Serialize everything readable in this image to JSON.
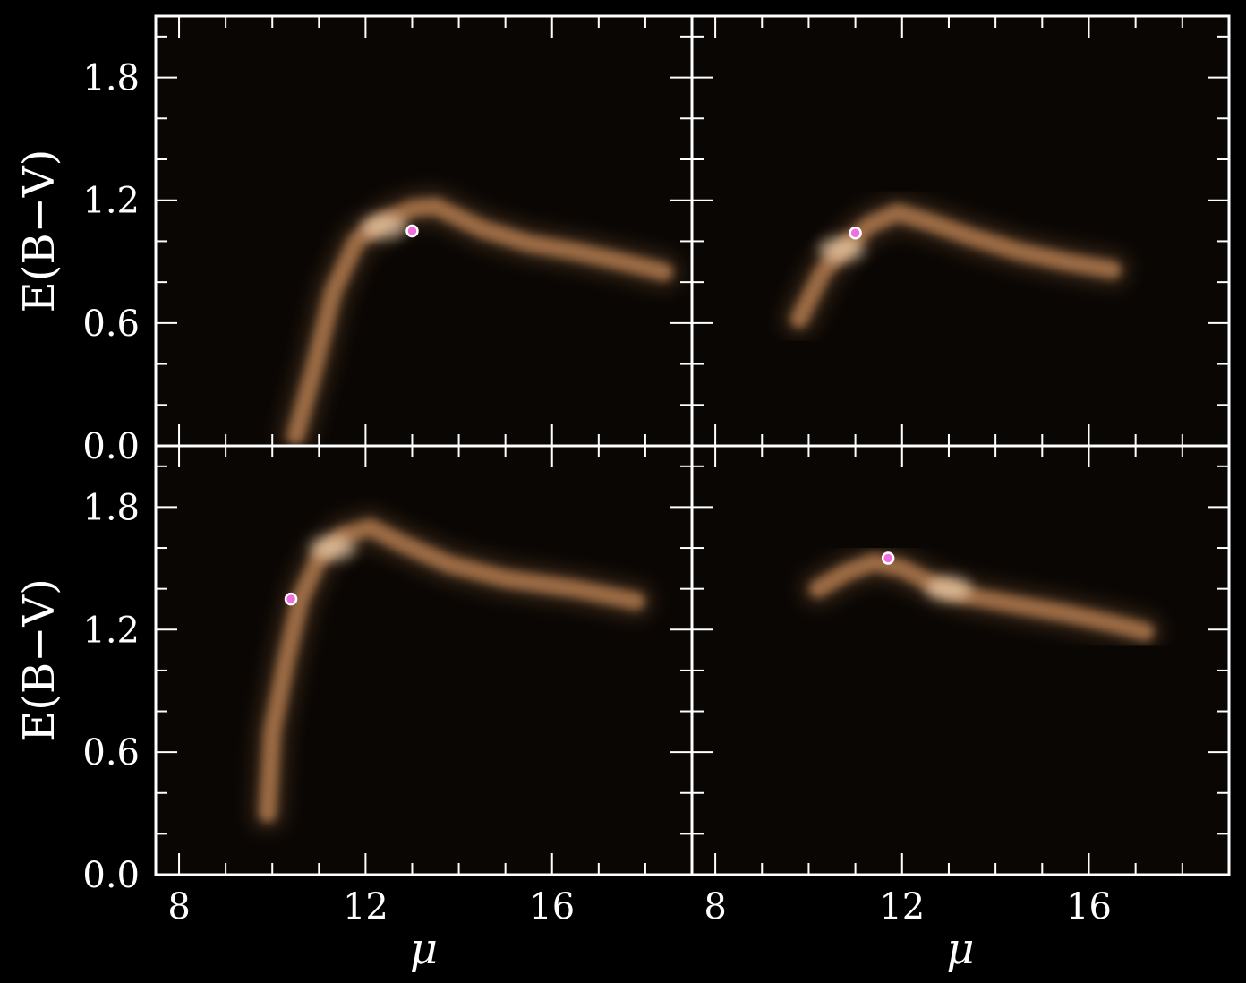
{
  "chart_data": {
    "type": "heatmap",
    "layout": "2x2 grid, shared axes",
    "colors": {
      "background": "#000000",
      "panel_bg": "#0a0603",
      "axes": "#ffffff",
      "density": "#f0a56a",
      "density_peak": "#ffe2c0",
      "marker_face": "#f06fe0",
      "marker_edge": "#ffffff"
    },
    "xlabel": "μ",
    "ylabel": "E(B−V)",
    "xlim": [
      7.5,
      19
    ],
    "ylim": [
      0.0,
      2.1
    ],
    "xticks": [
      8,
      12,
      16
    ],
    "xtick_labels": [
      "8",
      "12",
      "16"
    ],
    "yticks": [
      0.0,
      0.6,
      1.2,
      1.8
    ],
    "ytick_labels": [
      "0.0",
      "0.6",
      "1.2",
      "1.8"
    ],
    "panels": [
      {
        "position": "top-left",
        "ridge": [
          [
            10.5,
            0.05
          ],
          [
            10.9,
            0.38
          ],
          [
            11.3,
            0.75
          ],
          [
            11.8,
            1.0
          ],
          [
            12.4,
            1.1
          ],
          [
            13.0,
            1.16
          ],
          [
            13.5,
            1.17
          ],
          [
            14.5,
            1.06
          ],
          [
            15.5,
            0.99
          ],
          [
            16.5,
            0.95
          ],
          [
            17.5,
            0.9
          ],
          [
            18.4,
            0.85
          ]
        ],
        "peak": [
          12.4,
          1.07
        ],
        "marker": [
          13.0,
          1.05
        ]
      },
      {
        "position": "top-right",
        "ridge": [
          [
            9.8,
            0.62
          ],
          [
            10.3,
            0.85
          ],
          [
            10.8,
            0.98
          ],
          [
            11.3,
            1.08
          ],
          [
            11.9,
            1.14
          ],
          [
            12.5,
            1.1
          ],
          [
            13.5,
            1.02
          ],
          [
            14.5,
            0.95
          ],
          [
            15.5,
            0.9
          ],
          [
            16.5,
            0.86
          ]
        ],
        "peak": [
          10.7,
          0.96
        ],
        "marker": [
          11.0,
          1.04
        ]
      },
      {
        "position": "bottom-left",
        "ridge": [
          [
            9.9,
            0.3
          ],
          [
            10.0,
            0.7
          ],
          [
            10.3,
            1.05
          ],
          [
            10.6,
            1.35
          ],
          [
            11.0,
            1.55
          ],
          [
            11.5,
            1.66
          ],
          [
            12.1,
            1.7
          ],
          [
            12.8,
            1.62
          ],
          [
            13.8,
            1.52
          ],
          [
            15.0,
            1.45
          ],
          [
            16.5,
            1.4
          ],
          [
            17.8,
            1.34
          ]
        ],
        "peak": [
          11.3,
          1.6
        ],
        "marker": [
          10.4,
          1.35
        ]
      },
      {
        "position": "bottom-right",
        "ridge": [
          [
            10.2,
            1.4
          ],
          [
            10.8,
            1.48
          ],
          [
            11.4,
            1.53
          ],
          [
            12.0,
            1.5
          ],
          [
            12.6,
            1.43
          ],
          [
            13.3,
            1.37
          ],
          [
            14.5,
            1.32
          ],
          [
            15.5,
            1.28
          ],
          [
            16.5,
            1.23
          ],
          [
            17.2,
            1.19
          ]
        ],
        "peak": [
          13.0,
          1.4
        ],
        "marker": [
          11.7,
          1.55
        ]
      }
    ]
  }
}
